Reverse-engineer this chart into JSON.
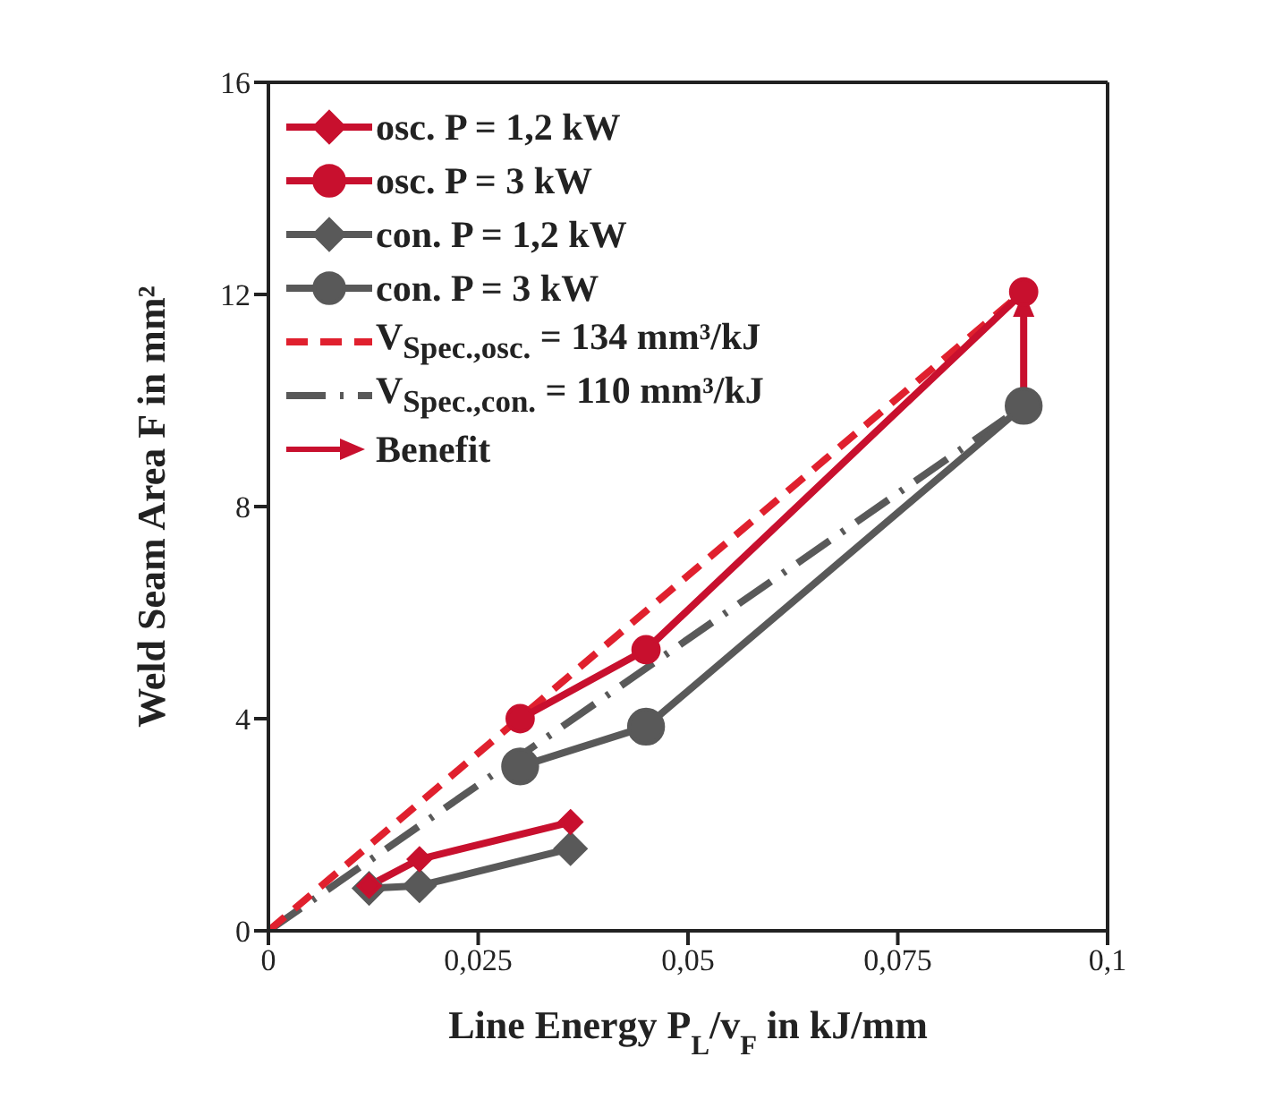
{
  "chart_data": {
    "type": "line",
    "xlabel": "Line Energy P$_{L}$/v$_{F}$ in kJ/mm",
    "ylabel": "Weld Seam Area F in mm²",
    "xlim": [
      0,
      0.1
    ],
    "xticks": [
      0,
      {
        "value": 0.025,
        "label": "0,025"
      },
      {
        "value": 0.05,
        "label": "0,05"
      },
      {
        "value": 0.075,
        "label": "0,075"
      },
      {
        "value": 0.1,
        "label": "0,1"
      }
    ],
    "ylim": [
      0,
      16
    ],
    "yticks": [
      0,
      4,
      8,
      12,
      16
    ],
    "grid": false,
    "legend": "top left",
    "line_style": "solid",
    "series": [
      {
        "name": "osc. P = 1,2 kW",
        "color": "#c8102e",
        "marker": "diamond",
        "x": [
          0.012,
          0.018,
          0.036
        ],
        "values": [
          0.85,
          1.35,
          2.05
        ]
      },
      {
        "name": "osc. P = 3 kW",
        "color": "#c8102e",
        "marker": "circle",
        "x": [
          0.03,
          0.045,
          0.09
        ],
        "values": [
          4.0,
          5.3,
          12.05
        ]
      },
      {
        "name": "con. P = 1,2 kW",
        "color": "#595959",
        "marker": "diamond",
        "x": [
          0.012,
          0.018,
          0.036
        ],
        "values": [
          0.8,
          0.85,
          1.55
        ]
      },
      {
        "name": "con. P = 3 kW",
        "color": "#595959",
        "marker": "circle",
        "x": [
          0.03,
          0.045,
          0.09
        ],
        "values": [
          3.1,
          3.85,
          9.9
        ]
      },
      {
        "name": "V$_{Spec.,osc.}$ = 134 mm³/kJ",
        "color": "#e0202e",
        "marker": "none",
        "line_style": "dashed",
        "x": [
          0,
          0.09
        ],
        "values": [
          0,
          12.06
        ]
      },
      {
        "name": "V$_{Spec.,con.}$ = 110 mm³/kJ",
        "color": "#595959",
        "marker": "none",
        "line_style": "dashdot",
        "x": [
          0,
          0.09
        ],
        "values": [
          0,
          9.9
        ]
      },
      {
        "name": "Benefit",
        "color": "#c8102e",
        "marker": "none",
        "x": [
          0.09,
          0.09
        ],
        "values": [
          9.9,
          12.05
        ]
      }
    ]
  }
}
